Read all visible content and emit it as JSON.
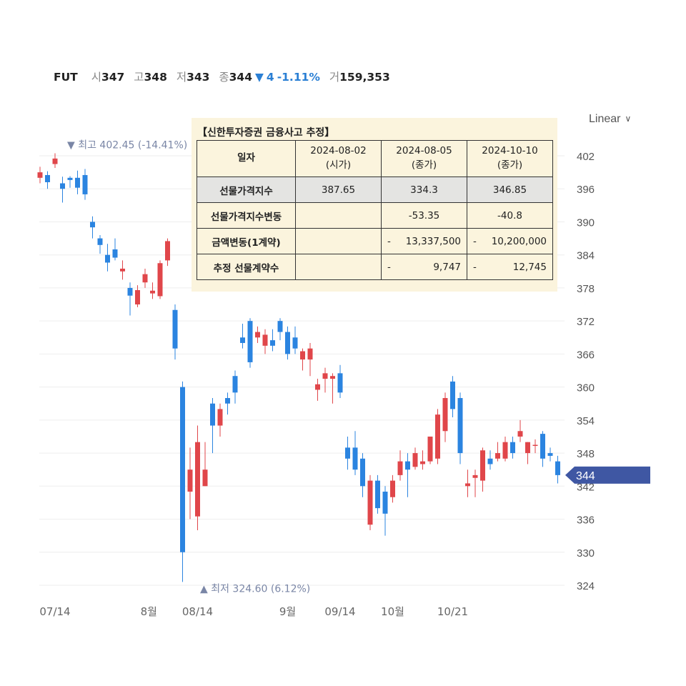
{
  "ticker": {
    "symbol": "FUT",
    "open_label": "시",
    "open": "347",
    "high_label": "고",
    "high": "348",
    "low_label": "저",
    "low": "343",
    "close_label": "종",
    "close": "344",
    "change_arrow": "▼",
    "change": "4",
    "change_pct": "-1.11%",
    "volume_label": "거",
    "volume": "159,353"
  },
  "scale_selector": {
    "label": "Linear",
    "chevron": "chevron-down-icon"
  },
  "colors": {
    "up": "#e0464a",
    "down": "#2b84e0",
    "current_tag": "#3f57a3",
    "accent_blue": "#2a7fd4",
    "label_gray": "#7a86a6"
  },
  "info_box": {
    "title": "【신한투자증권 금융사고 추정】",
    "header": {
      "row_label": "일자",
      "cols": [
        {
          "date": "2024-08-02",
          "note": "(시가)"
        },
        {
          "date": "2024-08-05",
          "note": "(종가)"
        },
        {
          "date": "2024-10-10",
          "note": "(종가)"
        }
      ]
    },
    "rows": [
      {
        "label": "선물가격지수",
        "values": [
          "387.65",
          "334.3",
          "346.85"
        ]
      },
      {
        "label": "선물가격지수변동",
        "values": [
          "",
          "-53.35",
          "-40.8"
        ]
      },
      {
        "label": "금액변동(1계약)",
        "values": [
          "",
          "13,337,500",
          "10,200,000"
        ],
        "dash": "-"
      },
      {
        "label": "추정 선물계약수",
        "values": [
          "",
          "9,747",
          "12,745"
        ],
        "dash": "-"
      }
    ]
  },
  "chart_data": {
    "type": "candlestick",
    "y_axis": {
      "ticks": [
        402,
        396,
        390,
        384,
        378,
        372,
        366,
        360,
        354,
        348,
        342,
        336,
        330,
        324
      ],
      "range": [
        322,
        405
      ],
      "position": "right"
    },
    "x_axis": {
      "labels": [
        {
          "text": "07/14",
          "index": 2
        },
        {
          "text": "8월",
          "index": 14.5
        },
        {
          "text": "08/14",
          "index": 21
        },
        {
          "text": "9월",
          "index": 33
        },
        {
          "text": "09/14",
          "index": 40
        },
        {
          "text": "10월",
          "index": 47
        },
        {
          "text": "10/21",
          "index": 55
        }
      ]
    },
    "current_price": "344",
    "high_marker": {
      "arrow": "▼",
      "label": "최고",
      "value": "402.45 (-14.41%)",
      "index": 2,
      "price": 402.45
    },
    "low_marker": {
      "arrow": "▲",
      "label": "최저",
      "value": "324.60 (6.12%)",
      "index": 16,
      "price": 324.6
    },
    "candles": [
      {
        "o": 398.0,
        "h": 400.0,
        "l": 397.0,
        "c": 399.0
      },
      {
        "o": 398.5,
        "h": 399.2,
        "l": 396.0,
        "c": 397.2
      },
      {
        "o": 400.5,
        "h": 402.45,
        "l": 399.8,
        "c": 401.5
      },
      {
        "o": 397.0,
        "h": 398.2,
        "l": 393.5,
        "c": 396.0
      },
      {
        "o": 398.0,
        "h": 398.3,
        "l": 396.2,
        "c": 397.6
      },
      {
        "o": 398.0,
        "h": 399.3,
        "l": 395.0,
        "c": 396.2
      },
      {
        "o": 398.5,
        "h": 399.6,
        "l": 394.0,
        "c": 395.0
      },
      {
        "o": 390.0,
        "h": 391.0,
        "l": 387.0,
        "c": 389.0
      },
      {
        "o": 387.0,
        "h": 387.6,
        "l": 384.2,
        "c": 385.8
      },
      {
        "o": 384.0,
        "h": 386.0,
        "l": 381.0,
        "c": 382.6
      },
      {
        "o": 385.0,
        "h": 387.0,
        "l": 383.0,
        "c": 383.5
      },
      {
        "o": 381.0,
        "h": 383.0,
        "l": 379.5,
        "c": 381.5
      },
      {
        "o": 378.0,
        "h": 379.0,
        "l": 373.0,
        "c": 376.6
      },
      {
        "o": 375.0,
        "h": 378.5,
        "l": 374.5,
        "c": 377.6
      },
      {
        "o": 379.0,
        "h": 381.5,
        "l": 378.0,
        "c": 380.5
      },
      {
        "o": 377.0,
        "h": 379.0,
        "l": 376.0,
        "c": 377.5
      },
      {
        "o": 376.5,
        "h": 383.0,
        "l": 376.0,
        "c": 382.5
      },
      {
        "o": 383.0,
        "h": 387.0,
        "l": 382.0,
        "c": 386.5
      },
      {
        "o": 374.0,
        "h": 375.0,
        "l": 365.0,
        "c": 367.0
      },
      {
        "o": 360.0,
        "h": 361.0,
        "l": 324.6,
        "c": 330.0
      },
      {
        "o": 341.0,
        "h": 349.0,
        "l": 336.0,
        "c": 345.0
      },
      {
        "o": 336.5,
        "h": 353.0,
        "l": 334.0,
        "c": 350.0
      },
      {
        "o": 342.0,
        "h": 350.0,
        "l": 342.0,
        "c": 345.0
      },
      {
        "o": 357.0,
        "h": 358.0,
        "l": 348.0,
        "c": 353.0
      },
      {
        "o": 353.0,
        "h": 357.0,
        "l": 351.0,
        "c": 356.0
      },
      {
        "o": 358.0,
        "h": 359.0,
        "l": 355.0,
        "c": 357.0
      },
      {
        "o": 362.0,
        "h": 363.0,
        "l": 357.0,
        "c": 359.0
      },
      {
        "o": 369.0,
        "h": 371.5,
        "l": 367.0,
        "c": 368.0
      },
      {
        "o": 372.0,
        "h": 372.5,
        "l": 363.5,
        "c": 364.5
      },
      {
        "o": 369.0,
        "h": 371.0,
        "l": 368.0,
        "c": 370.0
      },
      {
        "o": 367.5,
        "h": 370.5,
        "l": 366.0,
        "c": 369.5
      },
      {
        "o": 368.5,
        "h": 370.5,
        "l": 366.5,
        "c": 367.5
      },
      {
        "o": 372.0,
        "h": 372.5,
        "l": 368.5,
        "c": 370.0
      },
      {
        "o": 370.0,
        "h": 371.0,
        "l": 365.0,
        "c": 366.0
      },
      {
        "o": 369.0,
        "h": 371.0,
        "l": 366.0,
        "c": 367.0
      },
      {
        "o": 365.0,
        "h": 367.0,
        "l": 363.0,
        "c": 366.5
      },
      {
        "o": 365.0,
        "h": 368.0,
        "l": 362.0,
        "c": 367.0
      },
      {
        "o": 359.5,
        "h": 361.5,
        "l": 357.5,
        "c": 360.5
      },
      {
        "o": 361.5,
        "h": 363.5,
        "l": 359.0,
        "c": 362.5
      },
      {
        "o": 361.5,
        "h": 362.5,
        "l": 357.0,
        "c": 362.0
      },
      {
        "o": 362.5,
        "h": 364.0,
        "l": 358.0,
        "c": 359.0
      },
      {
        "o": 349.0,
        "h": 351.0,
        "l": 345.0,
        "c": 347.0
      },
      {
        "o": 349.0,
        "h": 352.0,
        "l": 344.0,
        "c": 345.0
      },
      {
        "o": 347.0,
        "h": 348.0,
        "l": 340.0,
        "c": 342.0
      },
      {
        "o": 335.0,
        "h": 344.0,
        "l": 334.0,
        "c": 343.0
      },
      {
        "o": 343.0,
        "h": 344.0,
        "l": 337.0,
        "c": 338.0
      },
      {
        "o": 341.0,
        "h": 342.0,
        "l": 333.0,
        "c": 337.0
      },
      {
        "o": 340.0,
        "h": 344.0,
        "l": 339.0,
        "c": 343.0
      },
      {
        "o": 344.0,
        "h": 348.5,
        "l": 343.0,
        "c": 346.5
      },
      {
        "o": 346.5,
        "h": 348.0,
        "l": 340.0,
        "c": 345.0
      },
      {
        "o": 345.5,
        "h": 349.0,
        "l": 345.0,
        "c": 348.0
      },
      {
        "o": 346.0,
        "h": 348.5,
        "l": 345.0,
        "c": 346.5
      },
      {
        "o": 346.5,
        "h": 351.0,
        "l": 346.0,
        "c": 351.0
      },
      {
        "o": 347.0,
        "h": 356.0,
        "l": 346.0,
        "c": 355.0
      },
      {
        "o": 352.0,
        "h": 359.0,
        "l": 350.0,
        "c": 358.0
      },
      {
        "o": 361.0,
        "h": 362.0,
        "l": 354.5,
        "c": 356.0
      },
      {
        "o": 358.0,
        "h": 359.0,
        "l": 346.0,
        "c": 348.0
      },
      {
        "o": 342.0,
        "h": 345.0,
        "l": 340.0,
        "c": 342.5
      },
      {
        "o": 343.5,
        "h": 345.0,
        "l": 340.0,
        "c": 344.0
      },
      {
        "o": 343.0,
        "h": 349.0,
        "l": 341.0,
        "c": 348.5
      },
      {
        "o": 347.0,
        "h": 348.5,
        "l": 345.0,
        "c": 346.0
      },
      {
        "o": 347.0,
        "h": 350.0,
        "l": 346.5,
        "c": 348.0
      },
      {
        "o": 347.0,
        "h": 351.0,
        "l": 346.5,
        "c": 350.0
      },
      {
        "o": 350.0,
        "h": 351.0,
        "l": 347.0,
        "c": 348.0
      },
      {
        "o": 351.0,
        "h": 354.0,
        "l": 350.0,
        "c": 352.0
      },
      {
        "o": 348.0,
        "h": 350.0,
        "l": 346.0,
        "c": 350.0
      },
      {
        "o": 349.5,
        "h": 350.5,
        "l": 348.0,
        "c": 349.5
      },
      {
        "o": 351.5,
        "h": 352.0,
        "l": 345.5,
        "c": 347.0
      },
      {
        "o": 348.0,
        "h": 349.0,
        "l": 346.5,
        "c": 347.5
      },
      {
        "o": 346.5,
        "h": 347.5,
        "l": 342.5,
        "c": 344.0
      }
    ]
  }
}
